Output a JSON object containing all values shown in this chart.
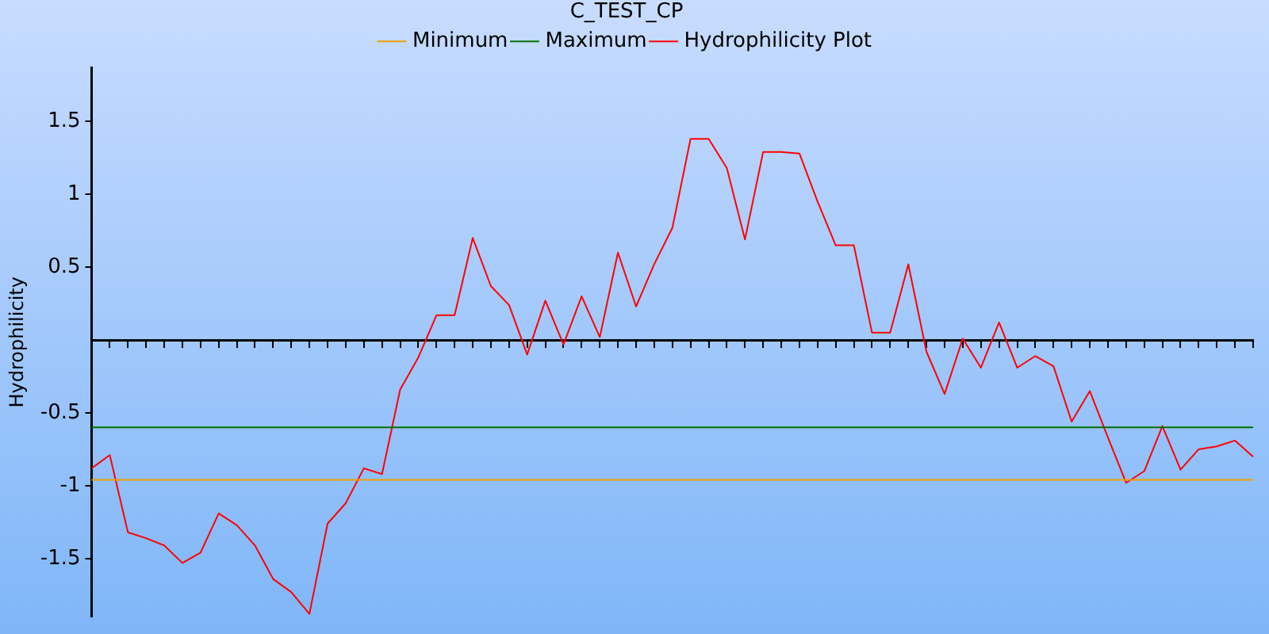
{
  "chart_data": {
    "type": "line",
    "title": "C_TEST_CP",
    "ylabel": "Hydrophilicity",
    "categories": [
      null,
      null,
      null,
      null,
      null,
      null,
      null,
      null,
      null,
      null,
      null,
      null,
      null,
      null,
      null,
      null,
      null,
      null,
      null,
      null,
      null,
      null,
      null,
      null,
      null,
      null,
      null,
      null,
      null,
      null,
      null,
      null,
      null,
      null,
      null,
      null,
      null,
      null,
      null,
      null,
      null,
      null,
      null,
      null,
      null,
      null,
      null,
      null,
      null,
      null,
      null,
      null,
      null,
      null,
      null,
      null,
      null,
      null,
      null,
      null,
      null,
      null,
      null,
      null,
      null
    ],
    "series": [
      {
        "name": "Minimum",
        "color": "#f0a000",
        "values": [
          -0.96,
          -0.96,
          -0.96,
          -0.96,
          -0.96,
          -0.96,
          -0.96,
          -0.96,
          -0.96,
          -0.96,
          -0.96,
          -0.96,
          -0.96,
          -0.96,
          -0.96,
          -0.96,
          -0.96,
          -0.96,
          -0.96,
          -0.96,
          -0.96,
          -0.96,
          -0.96,
          -0.96,
          -0.96,
          -0.96,
          -0.96,
          -0.96,
          -0.96,
          -0.96,
          -0.96,
          -0.96,
          -0.96,
          -0.96,
          -0.96,
          -0.96,
          -0.96,
          -0.96,
          -0.96,
          -0.96,
          -0.96,
          -0.96,
          -0.96,
          -0.96,
          -0.96,
          -0.96,
          -0.96,
          -0.96,
          -0.96,
          -0.96,
          -0.96,
          -0.96,
          -0.96,
          -0.96,
          -0.96,
          -0.96,
          -0.96,
          -0.96,
          -0.96,
          -0.96,
          -0.96,
          -0.96,
          -0.96,
          -0.96,
          -0.96
        ]
      },
      {
        "name": "Maximum",
        "color": "#007000",
        "values": [
          -0.6,
          -0.6,
          -0.6,
          -0.6,
          -0.6,
          -0.6,
          -0.6,
          -0.6,
          -0.6,
          -0.6,
          -0.6,
          -0.6,
          -0.6,
          -0.6,
          -0.6,
          -0.6,
          -0.6,
          -0.6,
          -0.6,
          -0.6,
          -0.6,
          -0.6,
          -0.6,
          -0.6,
          -0.6,
          -0.6,
          -0.6,
          -0.6,
          -0.6,
          -0.6,
          -0.6,
          -0.6,
          -0.6,
          -0.6,
          -0.6,
          -0.6,
          -0.6,
          -0.6,
          -0.6,
          -0.6,
          -0.6,
          -0.6,
          -0.6,
          -0.6,
          -0.6,
          -0.6,
          -0.6,
          -0.6,
          -0.6,
          -0.6,
          -0.6,
          -0.6,
          -0.6,
          -0.6,
          -0.6,
          -0.6,
          -0.6,
          -0.6,
          -0.6,
          -0.6,
          -0.6,
          -0.6,
          -0.6,
          -0.6,
          -0.6
        ]
      },
      {
        "name": "Hydrophilicity Plot",
        "color": "#ff0000",
        "values": [
          -0.88,
          -0.79,
          -1.32,
          -1.36,
          -1.41,
          -1.53,
          -1.46,
          -1.19,
          -1.27,
          -1.41,
          -1.64,
          -1.73,
          -1.88,
          -1.26,
          -1.12,
          -0.88,
          -0.92,
          -0.34,
          -0.12,
          0.17,
          0.17,
          0.7,
          0.37,
          0.24,
          -0.1,
          0.27,
          -0.03,
          0.3,
          0.02,
          0.6,
          0.23,
          0.52,
          0.77,
          1.38,
          1.38,
          1.18,
          0.69,
          1.29,
          1.29,
          1.28,
          0.95,
          0.65,
          0.65,
          0.05,
          0.05,
          0.52,
          -0.08,
          -0.37,
          0.01,
          -0.19,
          0.12,
          -0.19,
          -0.11,
          -0.18,
          -0.56,
          -0.35,
          -0.67,
          -0.98,
          -0.9,
          -0.59,
          -0.89,
          -0.75,
          -0.73,
          -0.69,
          -0.8
        ]
      }
    ],
    "ylim": [
      -1.9,
      1.87
    ],
    "yticks": [
      -1.5,
      -1,
      -0.5,
      0.5,
      1,
      1.5
    ],
    "grid": false,
    "legend": "top",
    "tick_labels": "y"
  }
}
